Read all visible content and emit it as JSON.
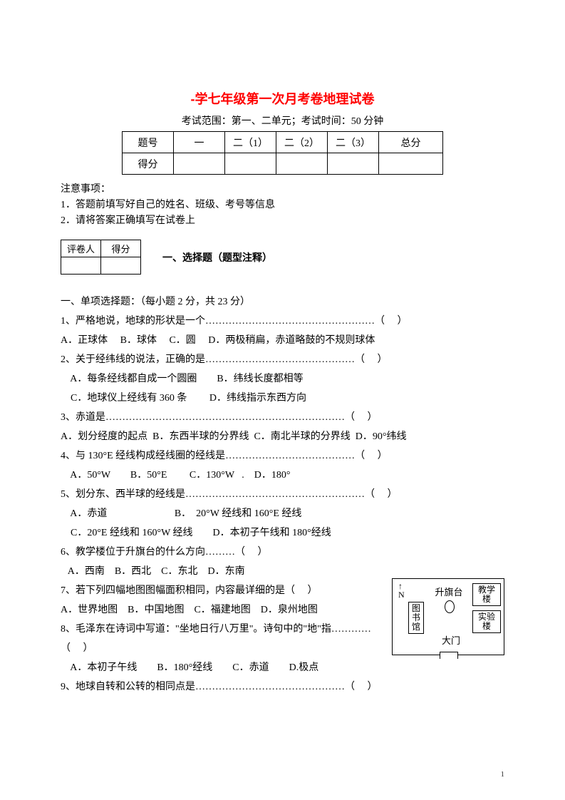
{
  "title": "-学七年级第一次月考卷地理试卷",
  "subtitle": "考试范围：第一、二单元；考试时间：50 分钟",
  "score_table": {
    "header": [
      "题号",
      "一",
      "二（1）",
      "二（2）",
      "二（3）",
      "总分"
    ],
    "row_label": "得分"
  },
  "notice": {
    "heading": "注意事项：",
    "items": [
      "1．答题前填写好自己的姓名、班级、考号等信息",
      "2．请将答案正确填写在试卷上"
    ]
  },
  "grader": {
    "col1": "评卷人",
    "col2": "得分"
  },
  "section1_title": "一、选择题（题型注释）",
  "instructions": "一、单项选择题：（每小题 2 分，共 23 分）",
  "questions": [
    {
      "stem": "1、严格地说，地球的形状是一个……………………………………………（     ）",
      "opts": "A．正球体     B．球体     C．圆     D．两极稍扁，赤道略鼓的不规则球体"
    },
    {
      "stem": "2、关于经纬线的说法，正确的是………………………………………（     ）",
      "opts": "    A．每条经线都自成一个圆圈        B．纬线长度都相等\n    C．地球仪上经线有 360 条         D．纬线指示东西方向"
    },
    {
      "stem": "3、赤道是………………………………………………………………（     ）",
      "opts": "A．划分经度的起点  B．东西半球的分界线  C．南北半球的分界线  D．90°纬线"
    },
    {
      "stem": "4、与 130°E 经线构成经线圈的经线是…………………………………（     ）",
      "opts": "    A．50°W        B．50°E         C．130°W   .    D．180°"
    },
    {
      "stem": "5、划分东、西半球的经线是………………………………………………（     ）",
      "opts": "    A．赤道                           B．  20°W 经线和 160°E 经线\n    C．20°E 经线和 160°W 经线        D．本初子午线和 180°经线"
    },
    {
      "stem": "6、教学楼位于升旗台的什么方向………（     ）",
      "opts": "   A．西南    B．西北    C．东北    D．东南"
    },
    {
      "stem": "7、若下列四幅地图图幅面积相同，内容最详细的是（     ）",
      "opts": "A．世界地图    B．中国地图    C．福建地图    D．泉州地图"
    },
    {
      "stem": "8、毛泽东在诗词中写道：\"坐地日行八万里\"。诗句中的\"地\"指…………\n（     ）",
      "opts": "    A．本初子午线        B．180°经线        C．赤道        D.极点"
    },
    {
      "stem": "9、地球自转和公转的相同点是………………………………………（     ）",
      "opts": ""
    }
  ],
  "diagram": {
    "north": "N",
    "library": "图\n书\n馆",
    "flag": "升旗台",
    "teaching": "教学楼",
    "lab": "实验楼",
    "gate": "大门"
  },
  "page_number": "1"
}
